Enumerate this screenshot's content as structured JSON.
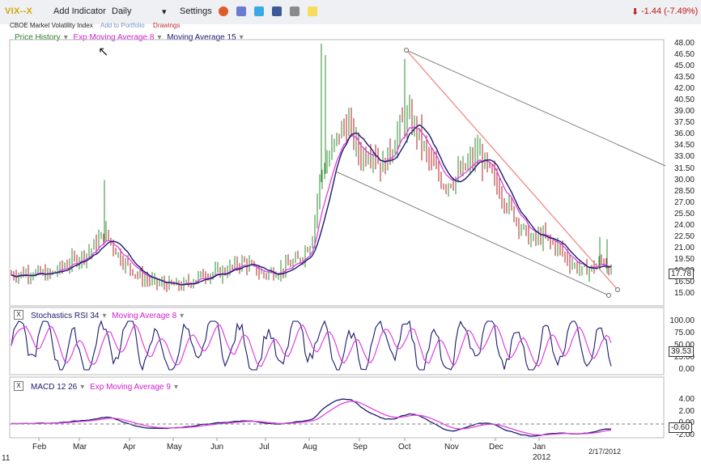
{
  "toolbar": {
    "ticker": "VIX--X",
    "add_indicator": "Add Indicator",
    "interval": "Daily",
    "settings": "Settings",
    "change": "-1.44 (-7.49%)"
  },
  "subbar": {
    "name": "CBOE Market Volatility Index",
    "add_portfolio": "Add to Portfolio",
    "drawings": "Drawings"
  },
  "colors": {
    "price_up": "#2e8b2e",
    "price_down": "#b22222",
    "ema": "#e040e0",
    "ma": "#1a1a6e",
    "trend": "#f08080",
    "channel": "#808080"
  },
  "main_panel": {
    "legend": [
      "Price History",
      "Exp Moving Average 8",
      "Moving Average 15"
    ],
    "y_ticks": [
      "48.00",
      "46.50",
      "45.00",
      "43.50",
      "42.00",
      "40.50",
      "39.00",
      "37.50",
      "36.00",
      "34.50",
      "33.00",
      "31.50",
      "30.00",
      "28.50",
      "27.00",
      "25.50",
      "24.00",
      "22.50",
      "21.00",
      "19.50",
      "18.00",
      "16.50",
      "15.00"
    ],
    "last_value": "17.78"
  },
  "stoch_panel": {
    "legend": [
      "Stochastics RSI 34",
      "Moving Average 8"
    ],
    "y_ticks": [
      "100.00",
      "75.00",
      "50.00",
      "25.00",
      "0.00"
    ],
    "last_value": "39.53"
  },
  "macd_panel": {
    "legend": [
      "MACD 12 26",
      "Exp Moving Average 9"
    ],
    "y_ticks": [
      "4.00",
      "2.00",
      "0.00",
      "-2.00"
    ],
    "last_value": "-0.60"
  },
  "x_axis": {
    "months": [
      "Feb",
      "Mar",
      "Apr",
      "May",
      "Jun",
      "Jul",
      "Aug",
      "Sep",
      "Oct",
      "Nov",
      "Dec",
      "Jan"
    ],
    "year_left": "11",
    "year_right": "2012",
    "date_label": "2/17/2012"
  },
  "chart_data": {
    "type": "line",
    "title": "VIX--X",
    "x": [
      "Feb",
      "Mar",
      "Apr",
      "May",
      "Jun",
      "Jul",
      "Aug",
      "Sep",
      "Oct",
      "Nov",
      "Dec",
      "Jan",
      "2/17/2012"
    ],
    "ylim": [
      15,
      48
    ],
    "series": [
      {
        "name": "Price History",
        "values": [
          17.5,
          17.8,
          21.5,
          16.8,
          15.9,
          18.5,
          17.0,
          34.0,
          38.0,
          33.0,
          27.0,
          22.0,
          17.78
        ]
      },
      {
        "name": "Exp Moving Average 8",
        "values": [
          17.8,
          17.9,
          23.0,
          16.9,
          15.9,
          18.0,
          17.2,
          33.0,
          37.5,
          32.5,
          27.5,
          22.0,
          18.5
        ]
      },
      {
        "name": "Moving Average 15",
        "values": [
          18.0,
          18.0,
          21.5,
          17.4,
          16.2,
          17.5,
          17.6,
          30.0,
          38.0,
          32.0,
          28.0,
          22.5,
          19.0
        ]
      }
    ],
    "panels": [
      {
        "name": "Stochastics RSI 34",
        "ylim": [
          0,
          100
        ],
        "last": 39.53
      },
      {
        "name": "MACD 12 26",
        "ylim": [
          -2,
          4
        ],
        "last": -0.6
      }
    ]
  }
}
